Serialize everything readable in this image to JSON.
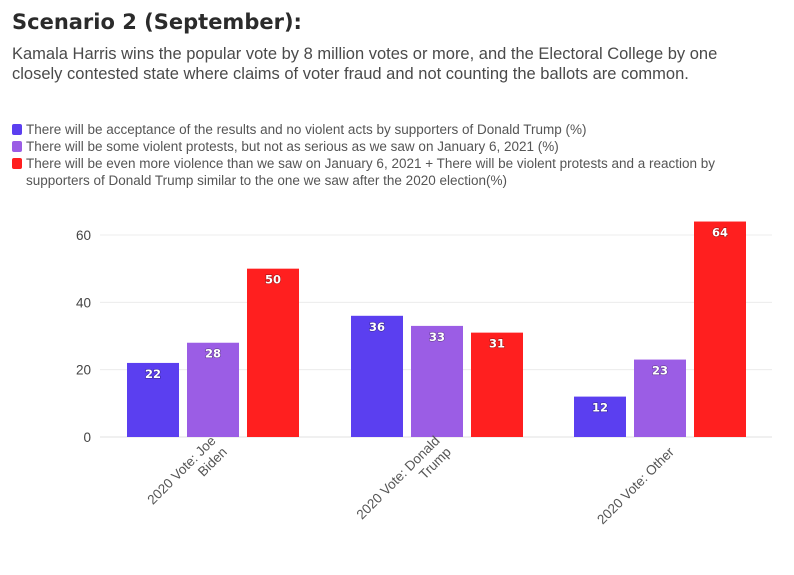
{
  "header": {
    "title": "Scenario 2 (September):",
    "subtitle": "Kamala Harris wins the popular vote by 8 million votes or more, and the Electoral College by one closely contested state where claims of voter fraud and not counting the ballots are common."
  },
  "legend": [
    {
      "label": "There will be acceptance of the results and no violent acts by supporters of Donald Trump (%)",
      "color": "#5b3ff0"
    },
    {
      "label": "There will be some violent protests, but not as serious as we saw on January 6, 2021 (%)",
      "color": "#9b5de5"
    },
    {
      "label": "There will be even more violence than we saw on January 6, 2021 + There will be violent protests and a reaction by supporters of Donald Trump similar to the one we saw after the 2020 election(%)",
      "color": "#ff1f1f"
    }
  ],
  "chart_data": {
    "type": "bar",
    "title": "Scenario 2 (September):",
    "categories": [
      [
        "2020 Vote: Joe",
        "Biden"
      ],
      [
        "2020 Vote: Donald",
        "Trump"
      ],
      [
        "2020 Vote: Other"
      ]
    ],
    "series": [
      {
        "name": "There will be acceptance of the results and no violent acts by supporters of Donald Trump (%)",
        "values": [
          22,
          36,
          12
        ],
        "color": "#5b3ff0"
      },
      {
        "name": "There will be some violent protests, but not as serious as we saw on January 6, 2021 (%)",
        "values": [
          28,
          33,
          23
        ],
        "color": "#9b5de5"
      },
      {
        "name": "There will be even more violence than we saw on January 6, 2021 + There will be violent protests and a reaction by supporters of Donald Trump similar to the one we saw after the 2020 election(%)",
        "values": [
          50,
          31,
          64
        ],
        "color": "#ff1f1f"
      }
    ],
    "yticks": [
      0,
      20,
      40,
      60
    ],
    "ylim": [
      0,
      64
    ],
    "grid": true,
    "legend_position": "top"
  }
}
